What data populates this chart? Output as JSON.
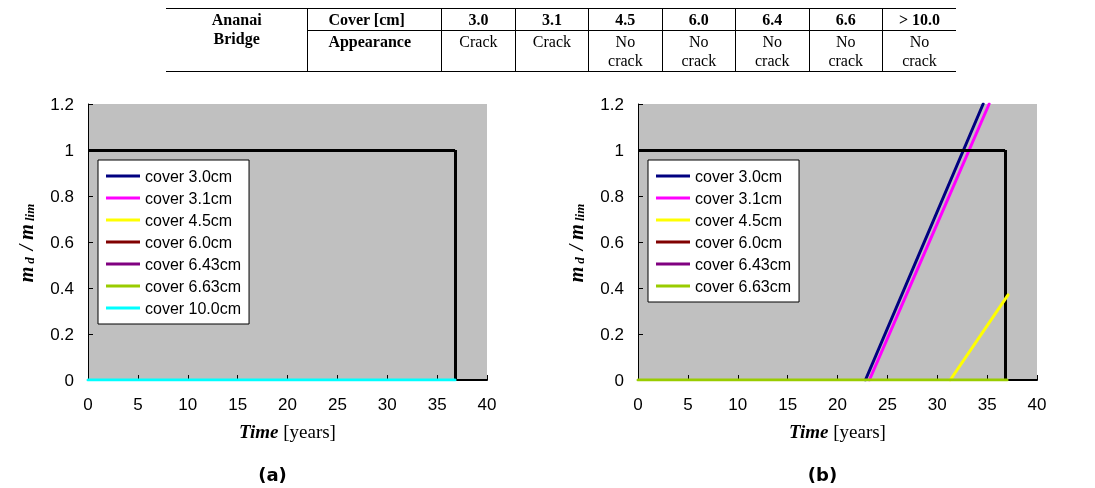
{
  "chart_data": [
    {
      "type": "other",
      "annotations": [
        "Ananai Bridge",
        "Cover [cm]",
        "3.0",
        "3.1",
        "4.5",
        "6.0",
        "6.4",
        "6.6",
        "> 10.0",
        "Appearance",
        "Crack",
        "Crack",
        "No crack",
        "No crack",
        "No crack",
        "No crack",
        "No crack"
      ]
    },
    {
      "type": "line",
      "title": "(a)",
      "xlabel": "Time [years]",
      "ylabel": "m$_{d}$ / m$_{lim}$",
      "xlim": [
        0,
        40
      ],
      "xticks": [
        0,
        5,
        10,
        15,
        20,
        25,
        30,
        35,
        40
      ],
      "ylim": [
        0,
        1.2
      ],
      "yticks": [
        0,
        0.2,
        0.4,
        0.6,
        0.8,
        1,
        1.2
      ],
      "grid": false,
      "legend": "left",
      "marker": "none",
      "ref_lines": [
        {
          "axis": "y",
          "value": 1,
          "color": "#000000"
        },
        {
          "axis": "x",
          "value": 36.8,
          "color": "#000000"
        }
      ],
      "series": [
        {
          "name": "cover 3.0cm",
          "color": "#000080"
        },
        {
          "name": "cover 3.1cm",
          "color": "#ff00ff"
        },
        {
          "name": "cover 4.5cm",
          "color": "#ffff00"
        },
        {
          "name": "cover 6.0cm",
          "color": "#800000"
        },
        {
          "name": "cover 6.43cm",
          "color": "#800080"
        },
        {
          "name": "cover 6.63cm",
          "color": "#99cc00"
        },
        {
          "name": "cover 10.0cm",
          "color": "#00ffff",
          "x": [
            0,
            36.8
          ],
          "values": [
            0,
            0
          ]
        }
      ]
    },
    {
      "type": "line",
      "title": "(b)",
      "xlabel": "Time [years]",
      "ylabel": "m$_{d}$ / m$_{lim}$",
      "xlim": [
        0,
        40
      ],
      "xticks": [
        0,
        5,
        10,
        15,
        20,
        25,
        30,
        35,
        40
      ],
      "ylim": [
        0,
        1.2
      ],
      "yticks": [
        0,
        0.2,
        0.4,
        0.6,
        0.8,
        1,
        1.2
      ],
      "grid": false,
      "legend": "left",
      "marker": "none",
      "ref_lines": [
        {
          "axis": "y",
          "value": 1,
          "color": "#000000"
        },
        {
          "axis": "x",
          "value": 36.8,
          "color": "#000000"
        }
      ],
      "series": [
        {
          "name": "cover 3.0cm",
          "color": "#000080",
          "x": [
            22.8,
            34.6
          ],
          "values": [
            0,
            1.2
          ]
        },
        {
          "name": "cover 3.1cm",
          "color": "#ff00ff",
          "x": [
            23.2,
            35.2
          ],
          "values": [
            0,
            1.2
          ]
        },
        {
          "name": "cover 4.5cm",
          "color": "#ffff00",
          "x": [
            31.3,
            37.1
          ],
          "values": [
            0,
            0.37
          ]
        },
        {
          "name": "cover 6.0cm",
          "color": "#800000"
        },
        {
          "name": "cover 6.43cm",
          "color": "#800080"
        },
        {
          "name": "cover 6.63cm",
          "color": "#99cc00",
          "x": [
            0,
            37
          ],
          "values": [
            0,
            0
          ]
        }
      ]
    }
  ]
}
